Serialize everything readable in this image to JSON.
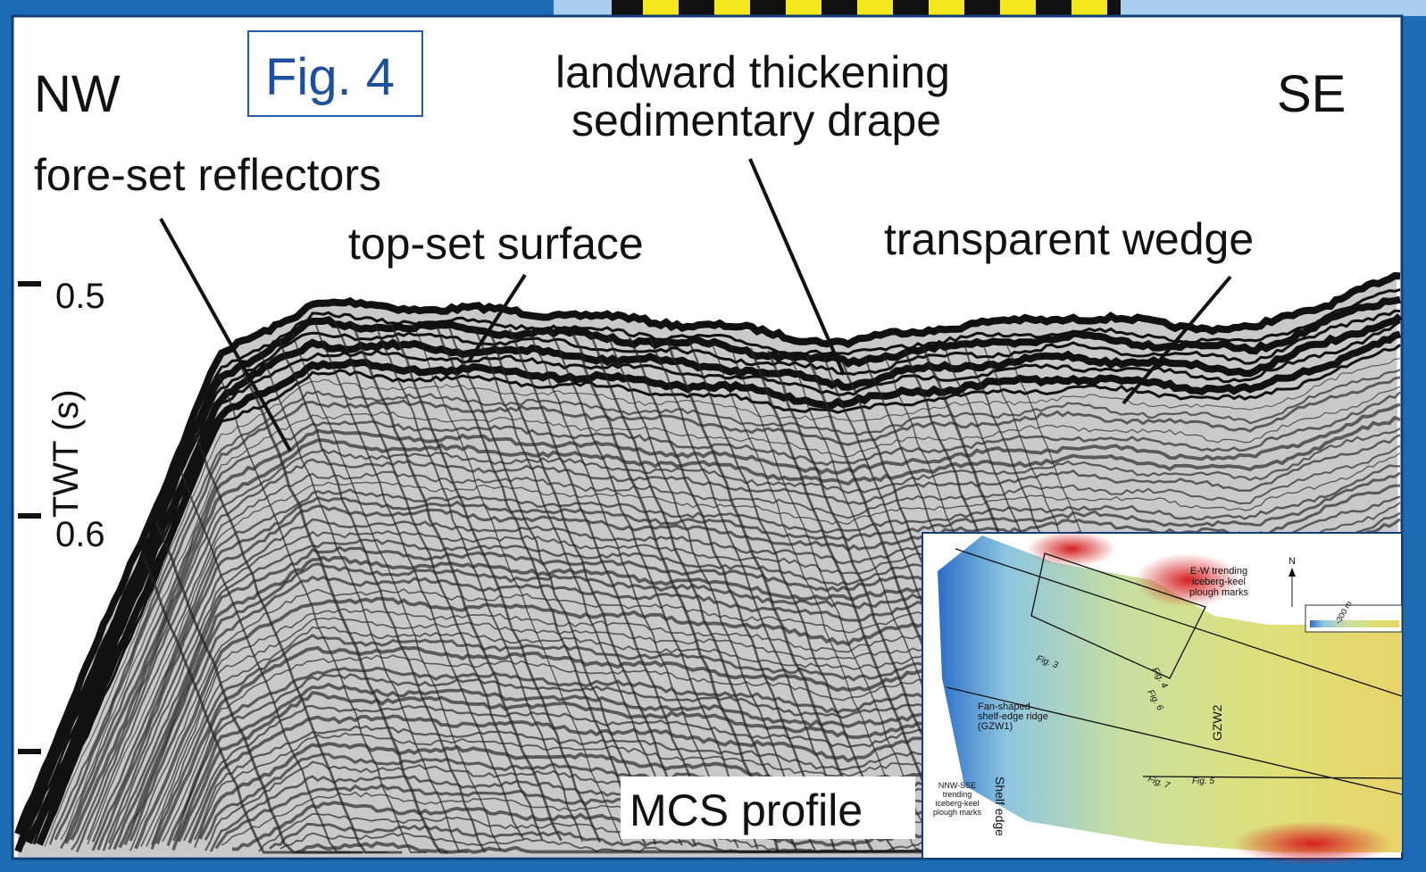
{
  "figure": {
    "direction_left": "NW",
    "direction_right": "SE",
    "figure_tag": "Fig. 4",
    "annotations": {
      "drape": [
        "landward thickening",
        "sedimentary drape"
      ],
      "foreset": "fore-set reflectors",
      "topset": "top-set surface",
      "wedge": "transparent wedge"
    },
    "axis": {
      "label": "TWT (s)",
      "ticks": [
        "0.5",
        "0.6"
      ]
    },
    "profile_label": "MCS profile"
  },
  "inset_map": {
    "north": "N",
    "scale": "-300 m",
    "ew_marks": [
      "E-W trending",
      "iceberg-keel",
      "plough marks"
    ],
    "fan_ridge": [
      "Fan-shaped",
      "shelf-edge ridge",
      "(GZW1)"
    ],
    "nnw_marks": [
      "NNW-SSE",
      "trending",
      "iceberg-keel",
      "plough marks"
    ],
    "shelf_edge": "Shelf edge",
    "gzw2": "GZW2",
    "fig_labels": [
      "Fig. 3",
      "Fig. 4",
      "Fig. 6",
      "Fig. 7",
      "Fig. 5"
    ]
  }
}
